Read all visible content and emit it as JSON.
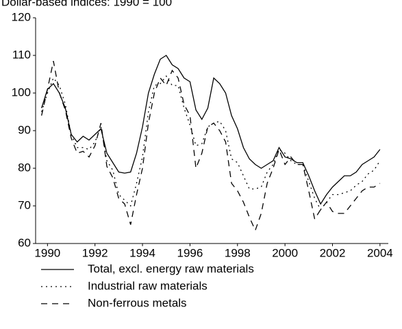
{
  "chart_data": {
    "type": "line",
    "title": "Dollar-based indices: 1990 = 100",
    "x": [
      1989.75,
      1990,
      1990.25,
      1990.5,
      1990.75,
      1991,
      1991.25,
      1991.5,
      1991.75,
      1992,
      1992.25,
      1992.5,
      1992.75,
      1993,
      1993.25,
      1993.5,
      1993.75,
      1994,
      1994.25,
      1994.5,
      1994.75,
      1995,
      1995.25,
      1995.5,
      1995.75,
      1996,
      1996.25,
      1996.5,
      1996.75,
      1997,
      1997.25,
      1997.5,
      1997.75,
      1998,
      1998.25,
      1998.5,
      1998.75,
      1999,
      1999.25,
      1999.5,
      1999.75,
      2000,
      2000.25,
      2000.5,
      2000.75,
      2001,
      2001.25,
      2001.5,
      2001.75,
      2002,
      2002.25,
      2002.5,
      2002.75,
      2003,
      2003.25,
      2003.5,
      2003.75,
      2004
    ],
    "series": [
      {
        "name": "Total, excl. energy raw materials",
        "color": "#000000",
        "dash": "solid",
        "values": [
          96,
          101,
          102.5,
          100,
          96,
          89,
          87,
          88.5,
          87.5,
          89,
          90.5,
          84,
          81.5,
          79,
          78.7,
          79,
          84,
          91,
          100,
          105,
          109,
          110,
          107.5,
          106.5,
          104,
          103,
          95.5,
          93,
          96,
          104,
          102.5,
          100,
          94,
          90.5,
          85.5,
          82.5,
          81,
          80,
          81,
          82,
          85.5,
          83,
          82.5,
          81.5,
          81.5,
          78,
          74,
          70.5,
          73,
          75,
          76.5,
          78,
          78,
          79,
          81,
          82,
          83,
          85
        ]
      },
      {
        "name": "Industrial raw materials",
        "color": "#000000",
        "dash": "dotted",
        "values": [
          95,
          100,
          104,
          102,
          97,
          89,
          85.5,
          85.5,
          85,
          87,
          91,
          82,
          79.5,
          73,
          71.5,
          70,
          76,
          83,
          95,
          102,
          102.5,
          104.5,
          102,
          102,
          96,
          91.5,
          86,
          86.5,
          91,
          92,
          92.5,
          90,
          82.5,
          81.5,
          78,
          74.5,
          74.5,
          75,
          79,
          81,
          85,
          84,
          82,
          81,
          81,
          76.5,
          72,
          69,
          71,
          73,
          73,
          73.5,
          74,
          75.5,
          76.5,
          78.5,
          79.5,
          82
        ]
      },
      {
        "name": "Non-ferrous metals",
        "color": "#000000",
        "dash": "dashed",
        "values": [
          94,
          101,
          108.5,
          100,
          95.5,
          88,
          84,
          84.5,
          83,
          86,
          92,
          80.5,
          77.5,
          72,
          70.5,
          65,
          73,
          80,
          92,
          100,
          104,
          102,
          106,
          104,
          97,
          94,
          80,
          84,
          91,
          92,
          90,
          87,
          76,
          74,
          71,
          67,
          63.5,
          68,
          76,
          80,
          85,
          81,
          83,
          81,
          81,
          74,
          66.5,
          69,
          71,
          68.5,
          68,
          68,
          70,
          72,
          74,
          75,
          75,
          76
        ]
      }
    ],
    "xlim": [
      1989.5,
      2004.35
    ],
    "xticks": [
      1990,
      1992,
      1994,
      1996,
      1998,
      2000,
      2002,
      2004
    ],
    "ylim": [
      60,
      120
    ],
    "yticks": [
      60,
      70,
      80,
      90,
      100,
      110,
      120
    ],
    "grid": false
  }
}
